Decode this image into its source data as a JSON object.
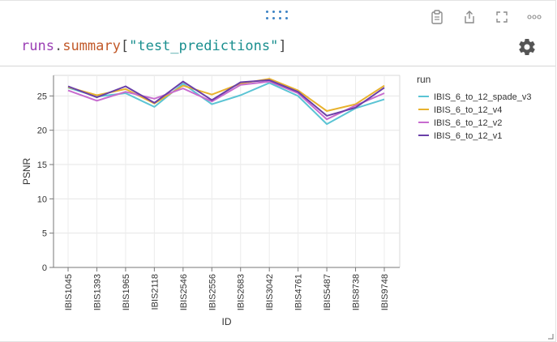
{
  "panel": {
    "query": {
      "var": "runs",
      "dot": ".",
      "attr": "summary",
      "open": "[",
      "key": "\"test_predictions\"",
      "close": "]"
    },
    "toolbar_icons": [
      "clipboard-icon",
      "share-icon",
      "fullscreen-icon",
      "more-icon"
    ],
    "settings_icon": "gear-icon"
  },
  "colors": {
    "IBIS_6_to_12_spade_v3": "#5bc4d4",
    "IBIS_6_to_12_v4": "#e8b22e",
    "IBIS_6_to_12_v2": "#c76ccf",
    "IBIS_6_to_12_v1": "#6a3fa8",
    "handle": "#3b82c4"
  },
  "chart_data": {
    "type": "line",
    "xlabel": "ID",
    "ylabel": "PSNR",
    "ylim": [
      0,
      28
    ],
    "yticks": [
      0,
      5,
      10,
      15,
      20,
      25
    ],
    "grid": true,
    "legend_title": "run",
    "legend_position": "right",
    "categories": [
      "IBIS1045",
      "IBIS1393",
      "IBIS1965",
      "IBIS2118",
      "IBIS2546",
      "IBIS2556",
      "IBIS2683",
      "IBIS3042",
      "IBIS4761",
      "IBIS5487",
      "IBIS8738",
      "IBIS9748"
    ],
    "series": [
      {
        "name": "IBIS_6_to_12_spade_v3",
        "values": [
          26.2,
          24.9,
          25.4,
          23.4,
          26.8,
          23.8,
          25.1,
          26.9,
          25.0,
          20.9,
          23.2,
          24.5
        ]
      },
      {
        "name": "IBIS_6_to_12_v4",
        "values": [
          26.3,
          25.1,
          26.0,
          23.9,
          26.5,
          25.2,
          26.8,
          27.5,
          25.8,
          22.8,
          23.8,
          26.5
        ]
      },
      {
        "name": "IBIS_6_to_12_v2",
        "values": [
          25.8,
          24.3,
          25.6,
          24.6,
          26.1,
          24.2,
          26.6,
          27.1,
          25.4,
          21.6,
          23.6,
          25.4
        ]
      },
      {
        "name": "IBIS_6_to_12_v1",
        "values": [
          26.4,
          24.8,
          26.4,
          24.0,
          27.1,
          24.4,
          27.0,
          27.3,
          25.6,
          22.1,
          23.3,
          26.2
        ]
      }
    ]
  }
}
